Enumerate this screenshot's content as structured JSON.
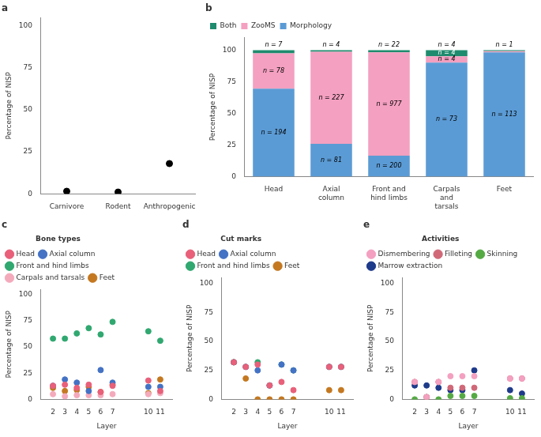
{
  "chart_data": [
    {
      "type": "scatter",
      "title": "a",
      "categories": [
        "Carnivore",
        "Rodent",
        "Anthropogenic"
      ],
      "values": [
        1.5,
        1.0,
        18.0
      ],
      "color": "#000000",
      "y_label": "Percentage of NISP",
      "ylim": [
        0,
        105
      ],
      "yticks": [
        0,
        25,
        50,
        75,
        100
      ],
      "grid": false
    },
    {
      "type": "bar",
      "stacked": true,
      "title": "b",
      "categories": [
        "Head",
        "Axial\ncolumn",
        "Front and\nhind limbs",
        "Carpals\nand\ntarsals",
        "Feet"
      ],
      "series": [
        {
          "name": "Morphology",
          "color": "#5B9BD5",
          "values": [
            69.5340502,
            25.9615385,
            16.6805671,
            90.1234568,
            98.2608696
          ],
          "labels": [
            "n = 194",
            "n = 81",
            "n = 200",
            "n = 73",
            "n = 113"
          ]
        },
        {
          "name": "ZooMS",
          "color": "#F4A0C0",
          "values": [
            27.9569892,
            72.7564103,
            81.4845705,
            4.9382716,
            0.8695652
          ],
          "labels": [
            "n = 78",
            "n = 227",
            "n = 977",
            "n = 4",
            null
          ]
        },
        {
          "name": "Both",
          "color": "#1F8B6E",
          "values": [
            2.5089606,
            1.2820513,
            1.8348624,
            4.9382716,
            0.8695652
          ],
          "labels": [
            null,
            null,
            null,
            "n = 4",
            null
          ]
        }
      ],
      "annotations": [
        "n = 7",
        "n = 4",
        "n = 22",
        "n = 4",
        "n = 1"
      ],
      "y_label": "Percentage of NISP",
      "ylim": [
        0,
        110
      ],
      "yticks": [
        0,
        25,
        50,
        75,
        100
      ],
      "grid": false,
      "legend": "upper left"
    },
    {
      "type": "scatter",
      "title": "c",
      "x_label": "Layer",
      "y_label": "Percentage of NISP",
      "legend": "upper left",
      "legend_title": "Bone types",
      "x": [
        2,
        3,
        4,
        5,
        6,
        7,
        10,
        11
      ],
      "series": [
        {
          "name": "Head",
          "color": "#E8607A",
          "values": [
            13,
            14,
            11,
            14,
            7,
            13,
            18,
            8
          ]
        },
        {
          "name": "Axial column",
          "color": "#4472C4",
          "values": [
            13,
            19,
            16,
            8,
            28,
            16,
            12,
            12
          ]
        },
        {
          "name": "Front and hind limbs",
          "color": "#30A870",
          "values": [
            58,
            58,
            63,
            68,
            62,
            74,
            65,
            56
          ]
        },
        {
          "name": "Carpals and tarsals",
          "color": "#F4AABB",
          "values": [
            5,
            3,
            4,
            4,
            4,
            5,
            5,
            6
          ]
        },
        {
          "name": "Feet",
          "color": "#C47820",
          "values": [
            11,
            8,
            9,
            12,
            7,
            14,
            6,
            19
          ]
        }
      ],
      "xlim": [
        1,
        12
      ],
      "xticks": [
        2,
        3,
        4,
        5,
        6,
        7,
        10,
        11
      ],
      "ylim": [
        0,
        105
      ],
      "yticks": [
        0,
        25,
        50,
        75,
        100
      ],
      "grid": false
    },
    {
      "type": "scatter",
      "title": "d",
      "x_label": "Layer",
      "y_label": "Percentage of NISP",
      "legend": "upper left",
      "legend_title": "Cut marks",
      "x": [
        2,
        3,
        4,
        5,
        6,
        7,
        10,
        11
      ],
      "series": [
        {
          "name": "Head",
          "color": "#E8607A",
          "values": [
            32,
            28,
            30,
            12,
            15,
            8,
            28,
            28
          ]
        },
        {
          "name": "Axial column",
          "color": "#4472C4",
          "values": [
            32,
            28,
            25,
            12,
            30,
            25,
            28,
            28
          ]
        },
        {
          "name": "Front and hind limbs",
          "color": "#30A870",
          "values": [
            32,
            28,
            32,
            12,
            30,
            25,
            28,
            28
          ]
        },
        {
          "name": "Feet",
          "color": "#C47820",
          "values": [
            32,
            18,
            0,
            0,
            0,
            0,
            8,
            8
          ]
        }
      ],
      "xlim": [
        1,
        12
      ],
      "xticks": [
        2,
        3,
        4,
        5,
        6,
        7,
        10,
        11
      ],
      "ylim": [
        0,
        105
      ],
      "yticks": [
        0,
        25,
        50,
        75,
        100
      ],
      "grid": false
    },
    {
      "type": "scatter",
      "title": "e",
      "x_label": "Layer",
      "y_label": "Percentage of NISP",
      "legend": "upper left",
      "legend_title": "Activities",
      "x": [
        2,
        3,
        4,
        5,
        6,
        7,
        10,
        11
      ],
      "series": [
        {
          "name": "Dismembering",
          "color": "#F4A0C0",
          "values": [
            15,
            2,
            15,
            20,
            20,
            20,
            18,
            18
          ]
        },
        {
          "name": "Filleting",
          "color": "#D06878",
          "values": [
            15,
            2,
            15,
            10,
            10,
            10,
            18,
            18
          ]
        },
        {
          "name": "Skinning",
          "color": "#55AA44",
          "values": [
            0,
            2,
            0,
            3,
            3,
            3,
            1,
            1
          ]
        },
        {
          "name": "Marrow extraction",
          "color": "#1E3A8A",
          "values": [
            12,
            12,
            10,
            8,
            8,
            25,
            8,
            5
          ]
        }
      ],
      "xlim": [
        1,
        12
      ],
      "xticks": [
        2,
        3,
        4,
        5,
        6,
        7,
        10,
        11
      ],
      "ylim": [
        0,
        105
      ],
      "yticks": [
        0,
        25,
        50,
        75,
        100
      ],
      "grid": false
    }
  ]
}
